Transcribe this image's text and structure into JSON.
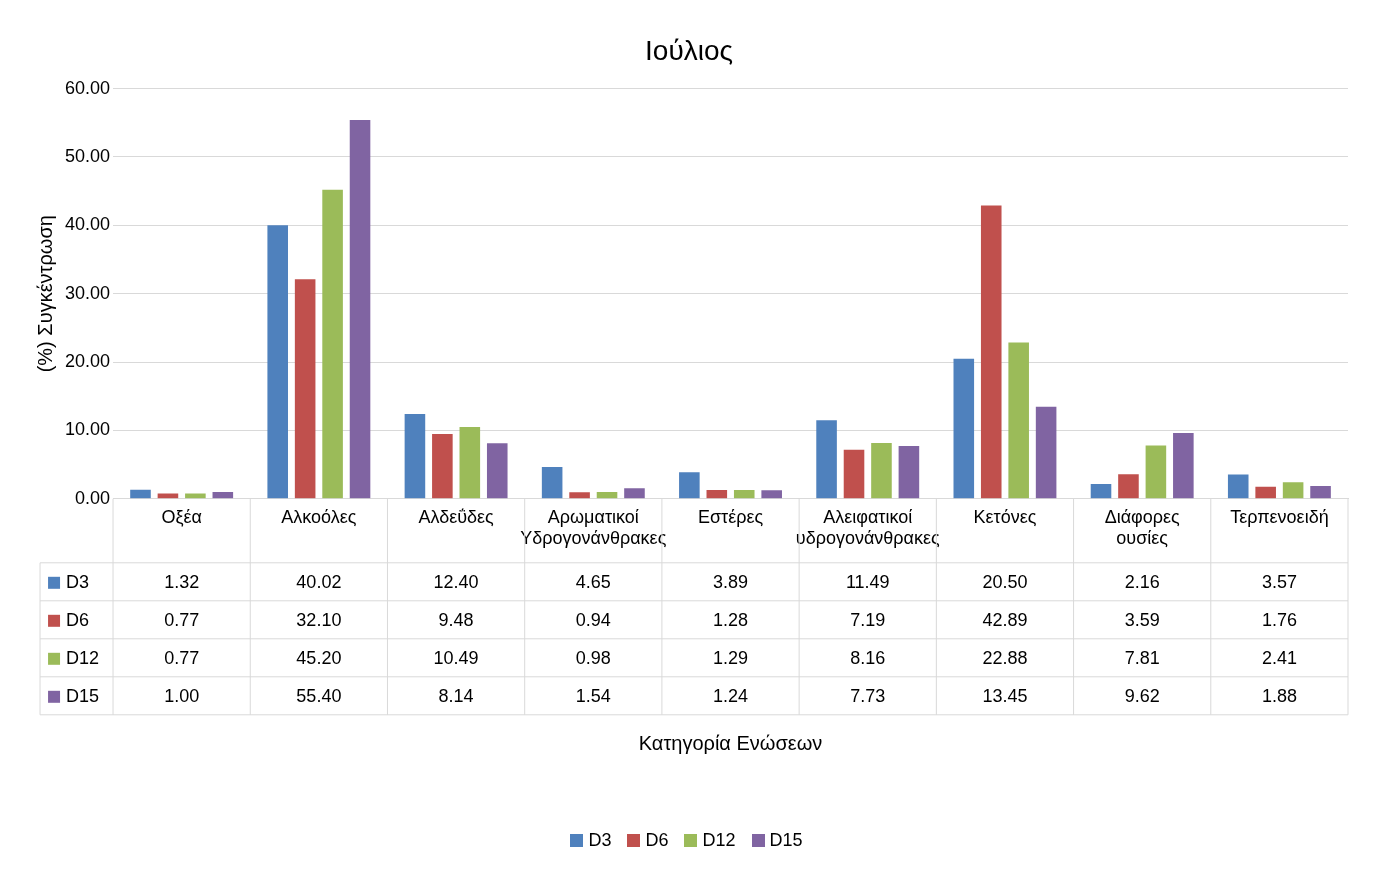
{
  "chart_data": {
    "type": "bar",
    "title": "Ιούλιος",
    "annotations": [
      "Κατηγορία Ενώσεων"
    ],
    "ylabel": "(%) Συγκέντρωση",
    "categories": [
      "Οξέα",
      "Αλκοόλες",
      "Αλδεΰδες",
      "Αρωματικοί Υδρογονάνθρακες",
      "Εστέρες",
      "Αλειφατικοί υδρογονάνθρακες",
      "Κετόνες",
      "Διάφορες ουσίες",
      "Τερπενοειδή"
    ],
    "series": [
      {
        "name": "D3",
        "color": "#4f81bd",
        "values": [
          1.32,
          40.02,
          12.4,
          4.65,
          3.89,
          11.49,
          20.5,
          2.16,
          3.57
        ],
        "value_labels": [
          "1.32",
          "40.02",
          "12.40",
          "4.65",
          "3.89",
          "11.49",
          "20.50",
          "2.16",
          "3.57"
        ]
      },
      {
        "name": "D6",
        "color": "#c0504d",
        "values": [
          0.77,
          32.1,
          9.48,
          0.94,
          1.28,
          7.19,
          42.89,
          3.59,
          1.76
        ],
        "value_labels": [
          "0.77",
          "32.10",
          "9.48",
          "0.94",
          "1.28",
          "7.19",
          "42.89",
          "3.59",
          "1.76"
        ]
      },
      {
        "name": "D12",
        "color": "#9bbb59",
        "values": [
          0.77,
          45.2,
          10.49,
          0.98,
          1.29,
          8.16,
          22.88,
          7.81,
          2.41
        ],
        "value_labels": [
          "0.77",
          "45.20",
          "10.49",
          "0.98",
          "1.29",
          "8.16",
          "22.88",
          "7.81",
          "2.41"
        ]
      },
      {
        "name": "D15",
        "color": "#8064a2",
        "values": [
          1.0,
          55.4,
          8.14,
          1.54,
          1.24,
          7.73,
          13.45,
          9.62,
          1.88
        ],
        "value_labels": [
          "1.00",
          "55.40",
          "8.14",
          "1.54",
          "1.24",
          "7.73",
          "13.45",
          "9.62",
          "1.88"
        ]
      }
    ],
    "ylim": [
      0,
      60
    ],
    "yticks": [
      {
        "value": 0,
        "label": "0.00"
      },
      {
        "value": 10,
        "label": "10.00"
      },
      {
        "value": 20,
        "label": "20.00"
      },
      {
        "value": 30,
        "label": "30.00"
      },
      {
        "value": 40,
        "label": "40.00"
      },
      {
        "value": 50,
        "label": "50.00"
      },
      {
        "value": 60,
        "label": "60.00"
      }
    ],
    "grid": "y",
    "legend": "bottom"
  }
}
